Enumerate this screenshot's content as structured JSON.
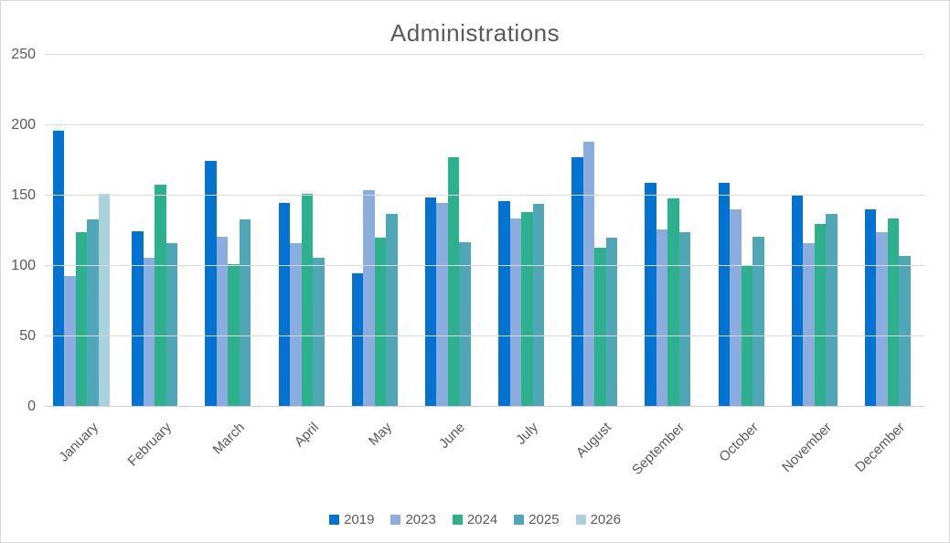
{
  "chart_data": {
    "type": "bar",
    "title": "Administrations",
    "categories": [
      "January",
      "February",
      "March",
      "April",
      "May",
      "June",
      "July",
      "August",
      "September",
      "October",
      "November",
      "December"
    ],
    "series": [
      {
        "name": "2019",
        "color": "#0273d0",
        "values": [
          196,
          125,
          175,
          145,
          95,
          149,
          146,
          177,
          159,
          159,
          150,
          140
        ]
      },
      {
        "name": "2023",
        "color": "#8badde",
        "values": [
          93,
          106,
          121,
          116,
          154,
          145,
          134,
          188,
          126,
          140,
          116,
          124
        ]
      },
      {
        "name": "2024",
        "color": "#2cb18c",
        "values": [
          124,
          158,
          101,
          151,
          120,
          177,
          138,
          113,
          148,
          100,
          130,
          134
        ]
      },
      {
        "name": "2025",
        "color": "#4fa6b6",
        "values": [
          133,
          116,
          133,
          106,
          137,
          117,
          144,
          120,
          124,
          121,
          137,
          107
        ]
      },
      {
        "name": "2026",
        "color": "#a9d2dc",
        "values": [
          151,
          null,
          null,
          null,
          null,
          null,
          null,
          null,
          null,
          null,
          null,
          null
        ]
      }
    ],
    "xlabel": "",
    "ylabel": "",
    "ylim": [
      0,
      250
    ],
    "yticks": [
      0,
      50,
      100,
      150,
      200,
      250
    ],
    "grid": true,
    "legend_position": "bottom"
  },
  "colors": {
    "gridline": "#d9d9d9",
    "axis_line": "#c9cccf",
    "text": "#595959"
  }
}
